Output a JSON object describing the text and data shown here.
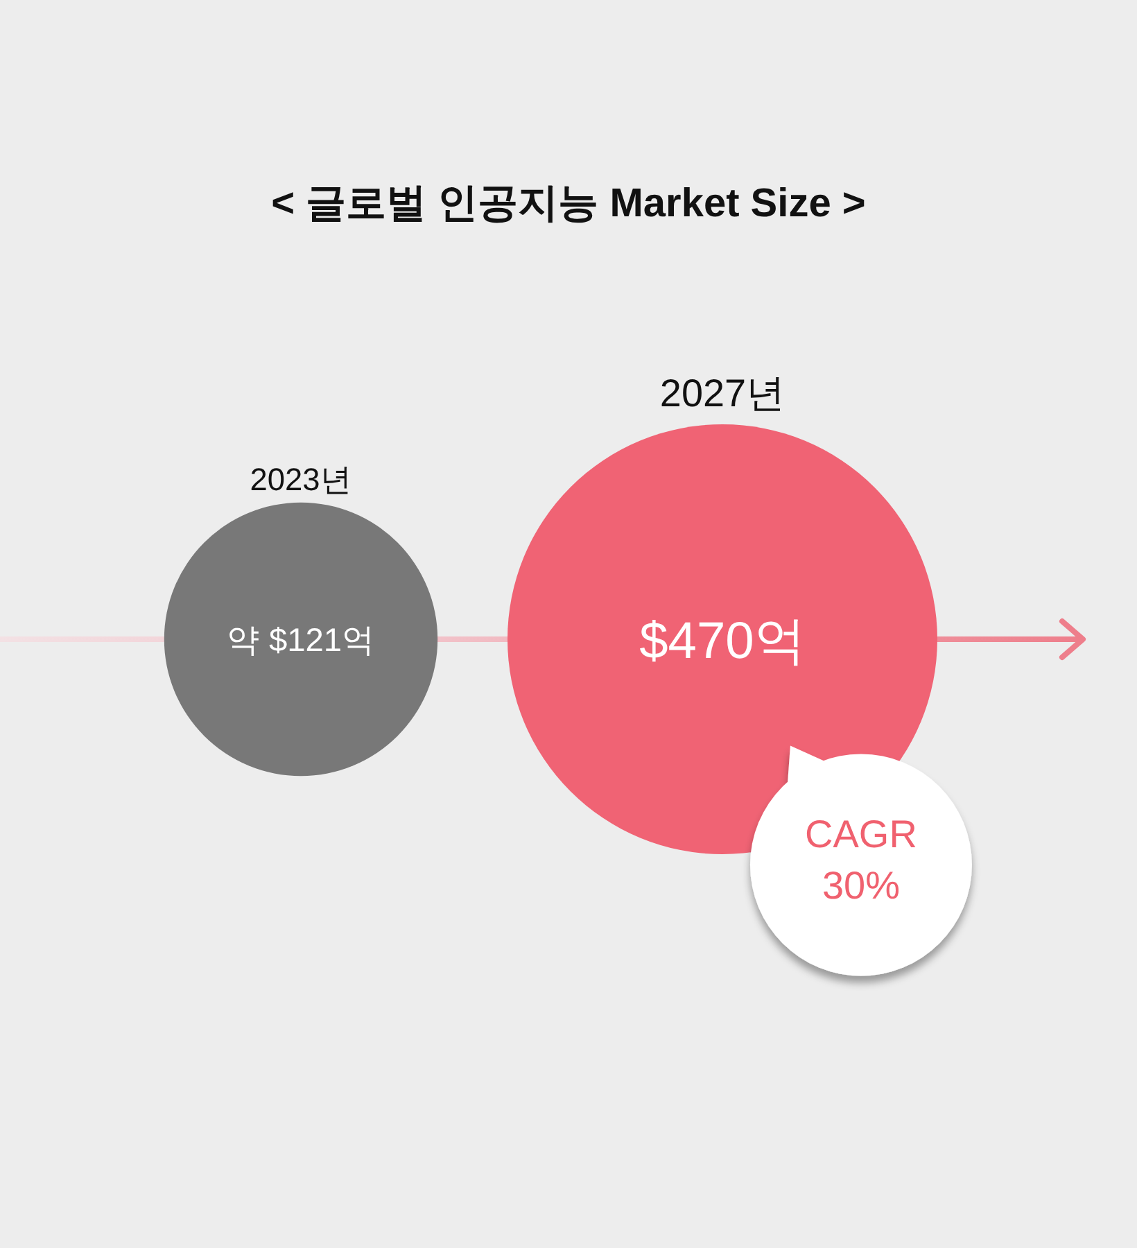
{
  "chart_data": {
    "type": "other",
    "title": "< 글로벌 인공지능 Market Size >",
    "categories": [
      "2023년",
      "2027년"
    ],
    "values": [
      121,
      470
    ],
    "value_labels": [
      "약 $121억",
      "$470억"
    ],
    "colors": [
      "#787878",
      "#f06374"
    ],
    "annotations": [
      "CAGR 30%"
    ]
  }
}
